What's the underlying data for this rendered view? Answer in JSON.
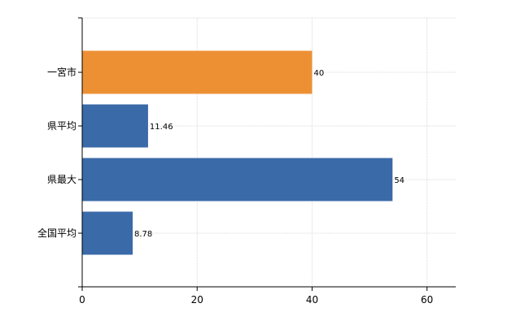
{
  "chart_data": {
    "type": "bar",
    "orientation": "horizontal",
    "categories": [
      "一宮市",
      "県平均",
      "県最大",
      "全国平均"
    ],
    "values": [
      40,
      11.46,
      54,
      8.78
    ],
    "data_labels": [
      "40",
      "11.46",
      "54",
      "8.78"
    ],
    "colors": [
      "#ed9034",
      "#3a6aa8",
      "#3a6aa8",
      "#3a6aa8"
    ],
    "xlim": [
      0,
      65
    ],
    "x_ticks": [
      0,
      20,
      40,
      60
    ],
    "x_tick_labels": [
      "0",
      "20",
      "40",
      "60"
    ],
    "grid": true,
    "title": "",
    "xlabel": "",
    "ylabel": ""
  }
}
